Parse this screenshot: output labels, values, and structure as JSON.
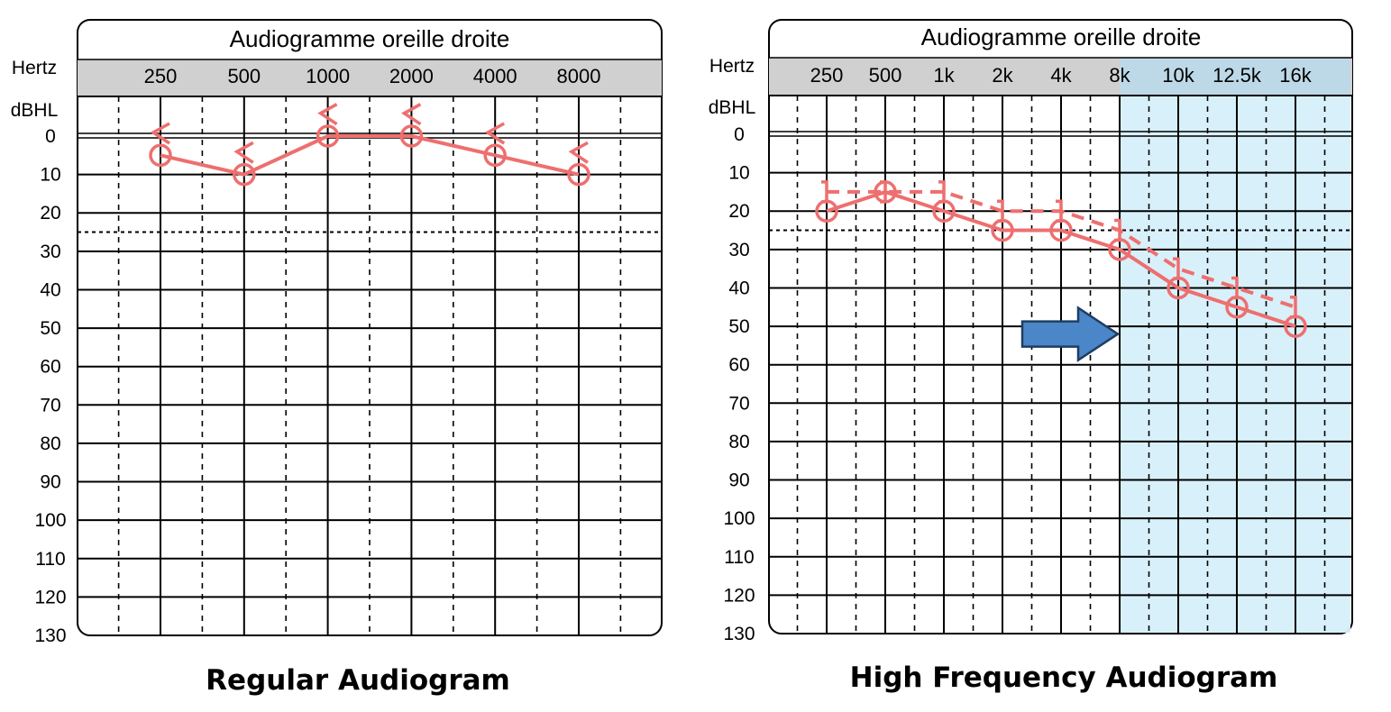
{
  "chart_data": [
    {
      "type": "line",
      "title": "Audiogramme oreille droite",
      "xlabel": "Hertz",
      "ylabel": "dBHL",
      "caption": "Regular Audiogram",
      "categories": [
        "250",
        "500",
        "1000",
        "2000",
        "4000",
        "8000"
      ],
      "y_ticks": [
        "0",
        "10",
        "20",
        "30",
        "40",
        "50",
        "60",
        "70",
        "80",
        "90",
        "100",
        "110",
        "120",
        "130"
      ],
      "ylim": [
        0,
        130
      ],
      "y_inverted": true,
      "threshold_line": 25,
      "grid": true,
      "series": [
        {
          "marker": "circle",
          "style": "solid",
          "color": "#ee6f6f",
          "values": [
            5,
            10,
            0,
            0,
            5,
            10
          ]
        },
        {
          "marker": "bone-conduction-bracket",
          "style": "marker-only",
          "color": "#ee6f6f",
          "values": [
            0,
            5,
            -5,
            -5,
            0,
            5
          ]
        }
      ]
    },
    {
      "type": "line",
      "title": "Audiogramme oreille droite",
      "xlabel": "Hertz",
      "ylabel": "dBHL",
      "caption": "High Frequency Audiogram",
      "categories": [
        "250",
        "500",
        "1k",
        "2k",
        "4k",
        "8k",
        "10k",
        "12.5k",
        "16k"
      ],
      "y_ticks": [
        "0",
        "10",
        "20",
        "30",
        "40",
        "50",
        "60",
        "70",
        "80",
        "90",
        "100",
        "110",
        "120",
        "130"
      ],
      "ylim": [
        0,
        130
      ],
      "y_inverted": true,
      "threshold_line": 25,
      "grid": true,
      "highlight_region": {
        "from": "8k",
        "to": "16k",
        "color": "#d6effa"
      },
      "arrow": {
        "color": "#4a86c8",
        "points_to": "8k"
      },
      "series": [
        {
          "marker": "circle",
          "style": "solid",
          "color": "#ee6f6f",
          "values": [
            20,
            15,
            20,
            25,
            25,
            30,
            40,
            45,
            50
          ]
        },
        {
          "marker": "bracket",
          "style": "dashed",
          "color": "#ee6f6f",
          "values": [
            15,
            15,
            15,
            20,
            20,
            25,
            35,
            40,
            45
          ]
        }
      ]
    }
  ]
}
